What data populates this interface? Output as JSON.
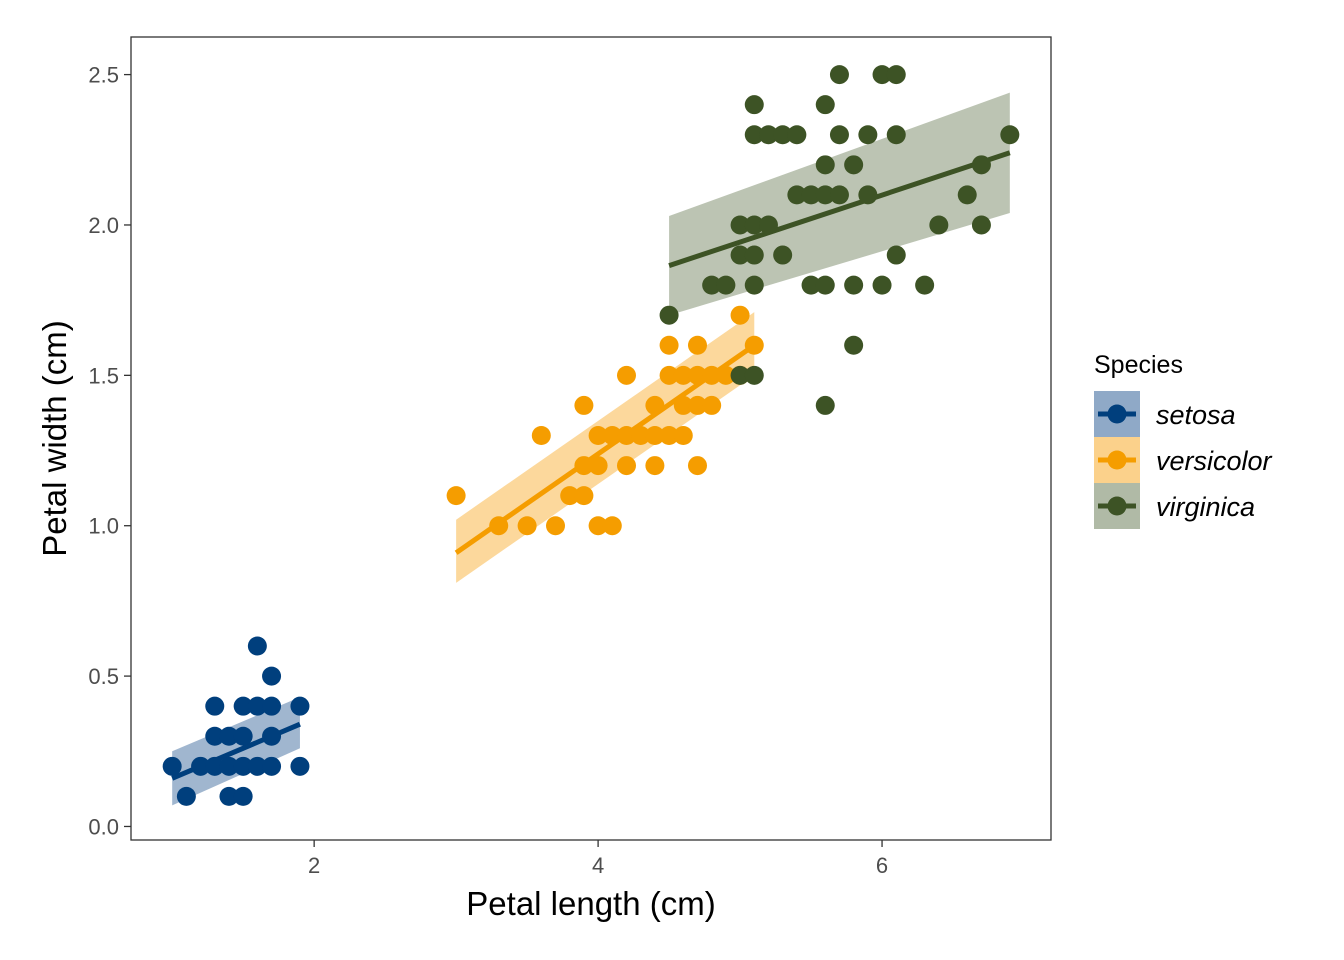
{
  "chart_data": {
    "type": "scatter",
    "title": "",
    "xlabel": "Petal length (cm)",
    "ylabel": "Petal width (cm)",
    "xlim": [
      0.71,
      7.19
    ],
    "ylim": [
      -0.045,
      2.625
    ],
    "x_ticks": [
      2,
      4,
      6
    ],
    "y_ticks": [
      0.0,
      0.5,
      1.0,
      1.5,
      2.0,
      2.5
    ],
    "x_tick_labels": [
      "2",
      "4",
      "6"
    ],
    "y_tick_labels": [
      "0.0",
      "0.5",
      "1.0",
      "1.5",
      "2.0",
      "2.5"
    ],
    "grid": false,
    "legend": {
      "title": "Species",
      "position": "right"
    },
    "series": [
      {
        "name": "setosa",
        "color": "#003f7d",
        "band_color": "#8fa9c7",
        "fit": {
          "x": [
            1.0,
            1.9
          ],
          "y": [
            0.16,
            0.34
          ]
        },
        "band": {
          "x": [
            1.0,
            1.9
          ],
          "lower": [
            0.07,
            0.26
          ],
          "upper": [
            0.25,
            0.43
          ]
        },
        "points": [
          [
            1.0,
            0.2
          ],
          [
            1.1,
            0.1
          ],
          [
            1.2,
            0.2
          ],
          [
            1.3,
            0.2
          ],
          [
            1.3,
            0.3
          ],
          [
            1.3,
            0.4
          ],
          [
            1.4,
            0.1
          ],
          [
            1.4,
            0.2
          ],
          [
            1.4,
            0.3
          ],
          [
            1.5,
            0.1
          ],
          [
            1.5,
            0.2
          ],
          [
            1.5,
            0.3
          ],
          [
            1.5,
            0.4
          ],
          [
            1.6,
            0.2
          ],
          [
            1.6,
            0.4
          ],
          [
            1.6,
            0.6
          ],
          [
            1.7,
            0.2
          ],
          [
            1.7,
            0.3
          ],
          [
            1.7,
            0.4
          ],
          [
            1.7,
            0.5
          ],
          [
            1.9,
            0.2
          ],
          [
            1.9,
            0.4
          ]
        ]
      },
      {
        "name": "versicolor",
        "color": "#f59d00",
        "band_color": "#fbd18b",
        "fit": {
          "x": [
            3.0,
            5.1
          ],
          "y": [
            0.91,
            1.6
          ]
        },
        "band": {
          "x": [
            3.0,
            5.1
          ],
          "lower": [
            0.81,
            1.5
          ],
          "upper": [
            1.02,
            1.71
          ]
        },
        "points": [
          [
            3.0,
            1.1
          ],
          [
            3.3,
            1.0
          ],
          [
            3.5,
            1.0
          ],
          [
            3.6,
            1.3
          ],
          [
            3.7,
            1.0
          ],
          [
            3.8,
            1.1
          ],
          [
            3.9,
            1.1
          ],
          [
            3.9,
            1.2
          ],
          [
            3.9,
            1.4
          ],
          [
            4.0,
            1.0
          ],
          [
            4.0,
            1.2
          ],
          [
            4.0,
            1.3
          ],
          [
            4.1,
            1.0
          ],
          [
            4.1,
            1.3
          ],
          [
            4.2,
            1.2
          ],
          [
            4.2,
            1.3
          ],
          [
            4.2,
            1.5
          ],
          [
            4.3,
            1.3
          ],
          [
            4.4,
            1.2
          ],
          [
            4.4,
            1.3
          ],
          [
            4.4,
            1.4
          ],
          [
            4.5,
            1.3
          ],
          [
            4.5,
            1.5
          ],
          [
            4.5,
            1.6
          ],
          [
            4.6,
            1.3
          ],
          [
            4.6,
            1.4
          ],
          [
            4.6,
            1.5
          ],
          [
            4.7,
            1.2
          ],
          [
            4.7,
            1.4
          ],
          [
            4.7,
            1.5
          ],
          [
            4.7,
            1.6
          ],
          [
            4.8,
            1.4
          ],
          [
            4.8,
            1.5
          ],
          [
            4.9,
            1.5
          ],
          [
            5.0,
            1.5
          ],
          [
            5.0,
            1.7
          ],
          [
            5.1,
            1.6
          ]
        ]
      },
      {
        "name": "virginica",
        "color": "#3d5325",
        "band_color": "#b0baa6",
        "fit": {
          "x": [
            4.5,
            6.9
          ],
          "y": [
            1.865,
            2.24
          ]
        },
        "band": {
          "x": [
            4.5,
            6.9
          ],
          "lower": [
            1.7,
            2.04
          ],
          "upper": [
            2.03,
            2.44
          ]
        },
        "points": [
          [
            4.5,
            1.7
          ],
          [
            4.8,
            1.8
          ],
          [
            4.9,
            1.8
          ],
          [
            5.0,
            1.5
          ],
          [
            5.0,
            2.0
          ],
          [
            5.0,
            1.9
          ],
          [
            5.1,
            1.5
          ],
          [
            5.1,
            1.8
          ],
          [
            5.1,
            1.9
          ],
          [
            5.1,
            2.0
          ],
          [
            5.1,
            2.3
          ],
          [
            5.1,
            2.4
          ],
          [
            5.2,
            2.0
          ],
          [
            5.2,
            2.3
          ],
          [
            5.3,
            1.9
          ],
          [
            5.3,
            2.3
          ],
          [
            5.4,
            2.1
          ],
          [
            5.4,
            2.3
          ],
          [
            5.5,
            1.8
          ],
          [
            5.5,
            2.1
          ],
          [
            5.6,
            1.4
          ],
          [
            5.6,
            1.8
          ],
          [
            5.6,
            2.1
          ],
          [
            5.6,
            2.2
          ],
          [
            5.6,
            2.4
          ],
          [
            5.7,
            2.1
          ],
          [
            5.7,
            2.3
          ],
          [
            5.7,
            2.5
          ],
          [
            5.8,
            1.6
          ],
          [
            5.8,
            1.8
          ],
          [
            5.8,
            2.2
          ],
          [
            5.9,
            2.1
          ],
          [
            5.9,
            2.3
          ],
          [
            6.0,
            1.8
          ],
          [
            6.0,
            2.5
          ],
          [
            6.1,
            1.9
          ],
          [
            6.1,
            2.3
          ],
          [
            6.1,
            2.5
          ],
          [
            6.3,
            1.8
          ],
          [
            6.4,
            2.0
          ],
          [
            6.6,
            2.1
          ],
          [
            6.7,
            2.0
          ],
          [
            6.7,
            2.2
          ],
          [
            6.9,
            2.3
          ]
        ]
      }
    ]
  }
}
